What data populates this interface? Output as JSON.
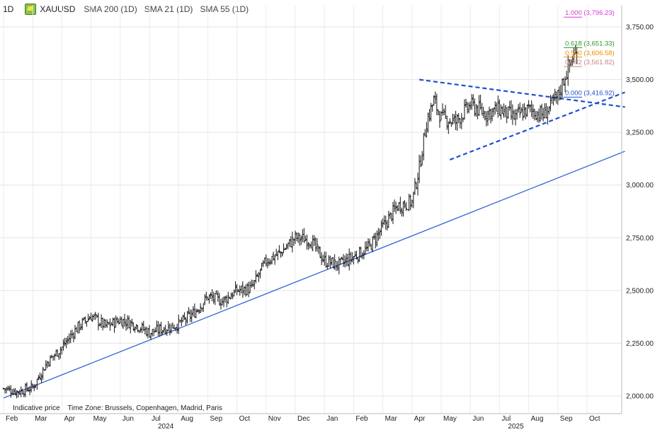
{
  "header": {
    "timeframe": "1D",
    "symbol": "XAUUSD",
    "indicators": [
      "SMA 200 (1D)",
      "SMA 21 (1D)",
      "SMA 55 (1D)"
    ]
  },
  "footer": {
    "note": "Indicative price",
    "timezone": "Time Zone: Brussels, Copenhagen, Madrid, Paris"
  },
  "colors": {
    "candles": "#111111",
    "trendline": "#2a5bd7",
    "triangle": "#1f4fd1",
    "fib_1000": "#d63bd6",
    "fib_0618": "#2e9a2e",
    "fib_0500": "#f08c00",
    "fib_0382": "#c9857c",
    "fib_0000": "#1f4fd1"
  },
  "chart_data": {
    "type": "candlestick",
    "title": "XAUUSD 1D",
    "ylim": [
      1950,
      3850
    ],
    "y_ticks": [
      "2,000.00",
      "2,250.00",
      "2,500.00",
      "2,750.00",
      "3,000.00",
      "3,250.00",
      "3,500.00",
      "3,750.00"
    ],
    "y_tick_values": [
      2000,
      2250,
      2500,
      2750,
      3000,
      3250,
      3500,
      3750
    ],
    "x_month_labels": [
      "Feb",
      "Mar",
      "Apr",
      "May",
      "Jun",
      "Jul",
      "Aug",
      "Sep",
      "Oct",
      "Nov",
      "Dec",
      "Jan",
      "Feb",
      "Mar",
      "Apr",
      "May",
      "Jun",
      "Jul",
      "Aug",
      "Sep",
      "Oct"
    ],
    "year_labels": [
      {
        "label": "2024",
        "month_index": 5
      },
      {
        "label": "2025",
        "month_index": 17
      }
    ],
    "price_series": {
      "description": "approximate daily closes sampled at month starts (month index from Feb 2024)",
      "month_index": [
        0,
        0.5,
        1,
        1.5,
        2,
        2.5,
        3,
        3.5,
        4,
        4.5,
        5,
        5.5,
        6,
        6.5,
        7,
        7.5,
        8,
        8.5,
        9,
        9.5,
        10,
        10.5,
        11,
        11.5,
        12,
        12.5,
        13,
        13.5,
        14,
        14.25,
        14.5,
        14.75,
        15,
        15.5,
        16,
        16.5,
        17,
        17.5,
        18,
        18.5,
        19,
        19.25,
        19.5,
        19.7
      ],
      "values": [
        2035,
        2020,
        2040,
        2160,
        2230,
        2320,
        2380,
        2330,
        2360,
        2340,
        2300,
        2320,
        2340,
        2390,
        2470,
        2450,
        2500,
        2510,
        2640,
        2680,
        2750,
        2740,
        2640,
        2620,
        2660,
        2700,
        2800,
        2900,
        2920,
        3080,
        3300,
        3400,
        3320,
        3300,
        3380,
        3340,
        3360,
        3320,
        3360,
        3330,
        3420,
        3520,
        3600,
        3640
      ]
    },
    "annotations": {
      "trendline": {
        "from": {
          "month_index": 0,
          "price": 1990
        },
        "to": {
          "month_index": 21.3,
          "price": 3160
        }
      },
      "triangle_upper": {
        "from": {
          "month_index": 14.25,
          "price": 3500
        },
        "to": {
          "month_index": 21.3,
          "price": 3370
        }
      },
      "triangle_lower": {
        "from": {
          "month_index": 15.3,
          "price": 3120
        },
        "to": {
          "month_index": 21.3,
          "price": 3440
        }
      },
      "fibonacci": [
        {
          "ratio": "1.000",
          "price_label": "(3,796.23)",
          "price": 3796.23,
          "color_key": "fib_1000"
        },
        {
          "ratio": "0.618",
          "price_label": "(3,651.33)",
          "price": 3651.33,
          "color_key": "fib_0618"
        },
        {
          "ratio": "0.500",
          "price_label": "(3,606.58)",
          "price": 3606.58,
          "color_key": "fib_0500"
        },
        {
          "ratio": "0.382",
          "price_label": "(3,561.82)",
          "price": 3561.82,
          "color_key": "fib_0382"
        },
        {
          "ratio": "0.000",
          "price_label": "(3,416.92)",
          "price": 3416.92,
          "color_key": "fib_0000"
        }
      ]
    }
  }
}
